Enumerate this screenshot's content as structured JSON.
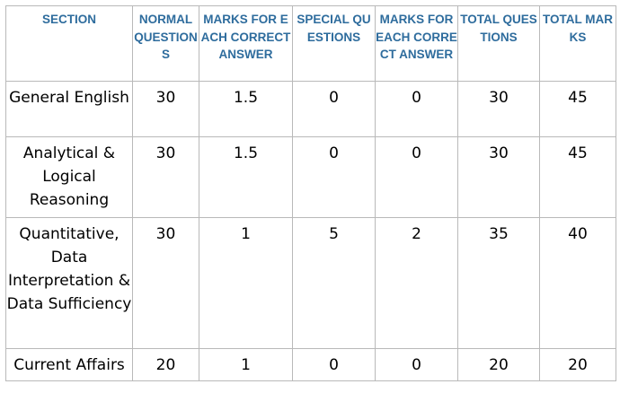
{
  "table": {
    "headers": [
      "SECTION",
      "NORMAL QUESTIONS",
      "MARKS FOR EACH CORRECT ANSWER",
      "SPECIAL QUESTIONS",
      "MARKS FOR EACH CORRECT ANSWER",
      "TOTAL QUESTIONS",
      "TOTAL MARKS"
    ],
    "rows": [
      [
        "General English",
        "30",
        "1.5",
        "0",
        "0",
        "30",
        "45"
      ],
      [
        "Analytical & Logical Reasoning",
        "30",
        "1.5",
        "0",
        "0",
        "30",
        "45"
      ],
      [
        "Quantitative, Data Interpretation & Data Sufficiency",
        "30",
        "1",
        "5",
        "2",
        "35",
        "40"
      ],
      [
        "Current Affairs",
        "20",
        "1",
        "0",
        "0",
        "20",
        "20"
      ]
    ]
  },
  "colors": {
    "header_text": "#2e6c9d",
    "border": "#b9b9b9",
    "cell_text": "#000000"
  }
}
